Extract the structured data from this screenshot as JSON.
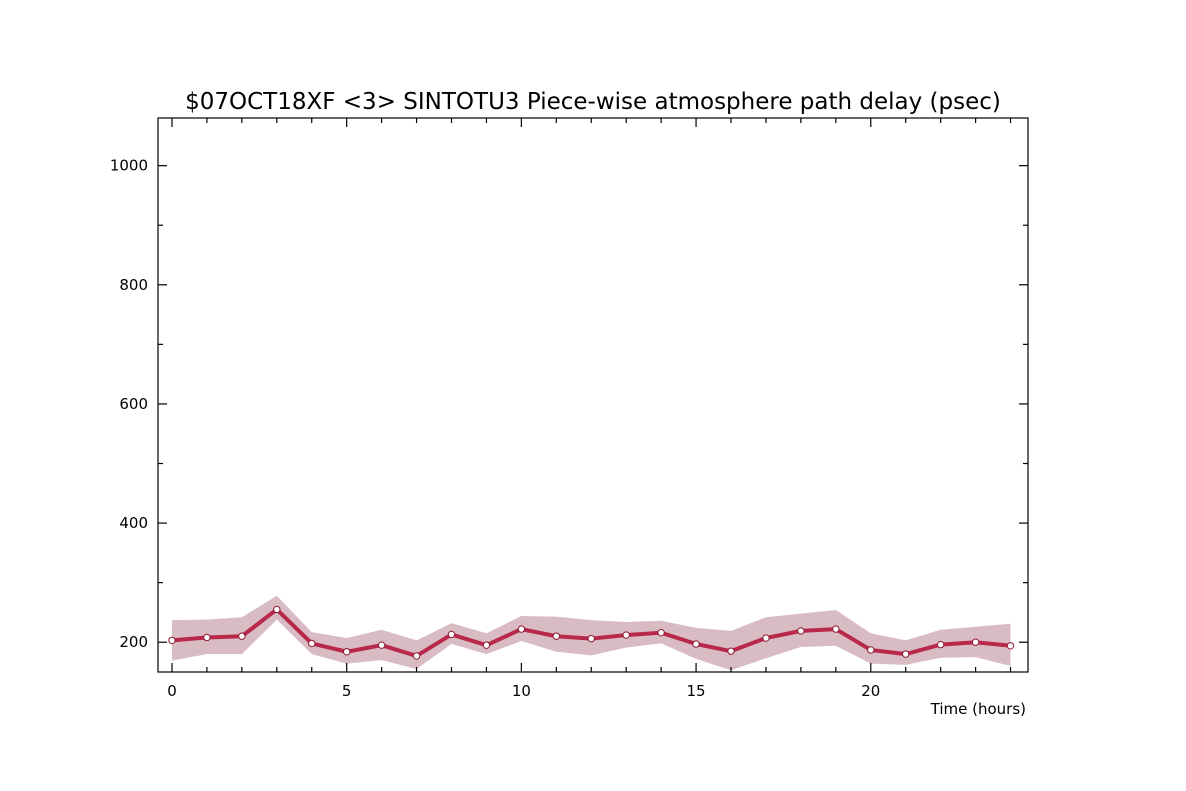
{
  "colors": {
    "line": "#b8284a",
    "band": "#d9bcc3",
    "marker_edge": "#8a1a33",
    "marker_fill": "#ffffff"
  },
  "chart_data": {
    "type": "line",
    "title": "$07OCT18XF <3>  SINTOTU3  Piece-wise atmosphere path delay (psec)",
    "xlabel": "Time (hours)",
    "ylabel": "",
    "xlim": [
      -0.4,
      24.5
    ],
    "ylim": [
      150,
      1080
    ],
    "x_ticks_major": [
      0,
      5,
      10,
      15,
      20
    ],
    "x_ticks_minor": [
      1,
      2,
      3,
      4,
      6,
      7,
      8,
      9,
      11,
      12,
      13,
      14,
      16,
      17,
      18,
      19,
      21,
      22,
      23,
      24
    ],
    "x_tick_labels": [
      "0",
      "5",
      "10",
      "15",
      "20"
    ],
    "y_ticks_major": [
      200,
      400,
      600,
      800,
      1000
    ],
    "y_ticks_minor": [
      300,
      500,
      700,
      900
    ],
    "y_tick_labels": [
      "200",
      "400",
      "600",
      "800",
      "1000"
    ],
    "grid": false,
    "series": [
      {
        "x": [
          0,
          1,
          2,
          3,
          4,
          5,
          6,
          7,
          8,
          9,
          10,
          11,
          12,
          13,
          14,
          15,
          16,
          17,
          18,
          19,
          20,
          21,
          22,
          23,
          24
        ],
        "y": [
          203,
          208,
          210,
          255,
          198,
          184,
          195,
          177,
          213,
          195,
          222,
          210,
          206,
          212,
          216,
          197,
          185,
          207,
          219,
          222,
          187,
          180,
          196,
          200,
          194
        ],
        "y_upper": [
          237,
          238,
          242,
          278,
          217,
          207,
          221,
          203,
          232,
          215,
          244,
          243,
          237,
          234,
          236,
          224,
          219,
          242,
          248,
          254,
          215,
          203,
          221,
          226,
          231
        ],
        "y_lower": [
          169,
          180,
          180,
          238,
          180,
          164,
          170,
          155,
          197,
          180,
          202,
          184,
          178,
          191,
          198,
          172,
          153,
          173,
          192,
          194,
          164,
          162,
          174,
          175,
          160
        ]
      }
    ]
  }
}
